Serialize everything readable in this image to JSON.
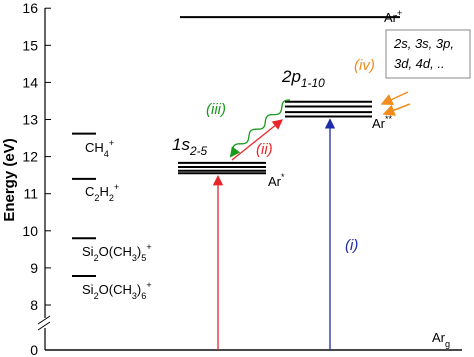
{
  "axis": {
    "label": "Energy (eV)",
    "ticks": [
      0,
      8,
      9,
      10,
      11,
      12,
      13,
      14,
      15,
      16
    ]
  },
  "levels": [
    {
      "energies": [
        15.76
      ],
      "label": [
        {
          "text": "Ar"
        },
        {
          "sup": "+"
        }
      ]
    },
    {
      "energies": [
        13.48,
        13.35,
        13.2,
        13.08
      ],
      "state": [
        {
          "text": "2p"
        },
        {
          "sub": "1-10"
        }
      ],
      "label": [
        {
          "text": "Ar"
        },
        {
          "sup": "**"
        }
      ]
    },
    {
      "energies": [
        11.83,
        11.72,
        11.62,
        11.55
      ],
      "state": [
        {
          "text": "1s"
        },
        {
          "sub": "2-5"
        }
      ],
      "label": [
        {
          "text": "Ar"
        },
        {
          "sup": "*"
        }
      ]
    },
    {
      "energies": [
        12.62
      ],
      "label": [
        {
          "text": "CH"
        },
        {
          "sub": "4"
        },
        {
          "sup": "+"
        }
      ]
    },
    {
      "energies": [
        11.4
      ],
      "label": [
        {
          "text": "C"
        },
        {
          "sub": "2"
        },
        {
          "text": "H"
        },
        {
          "sub": "2"
        },
        {
          "sup": "+"
        }
      ]
    },
    {
      "energies": [
        9.8
      ],
      "label": [
        {
          "text": "Si"
        },
        {
          "sub": "2"
        },
        {
          "text": "O(CH"
        },
        {
          "sub": "3"
        },
        {
          "text": ")"
        },
        {
          "sub": "5"
        },
        {
          "sup": "+"
        }
      ]
    },
    {
      "energies": [
        8.78
      ],
      "label": [
        {
          "text": "Si"
        },
        {
          "sub": "2"
        },
        {
          "text": "O(CH"
        },
        {
          "sub": "3"
        },
        {
          "text": ")"
        },
        {
          "sub": "6"
        },
        {
          "sup": "+"
        }
      ]
    },
    {
      "energies": [
        0
      ],
      "label": [
        {
          "text": "Ar"
        },
        {
          "sub": "g"
        }
      ]
    }
  ],
  "transitions": [
    "(i)",
    "(ii)",
    "(iii)",
    "(iv)"
  ],
  "box_lines": [
    "2s, 3s, 3p,",
    "3d, 4d, .."
  ]
}
